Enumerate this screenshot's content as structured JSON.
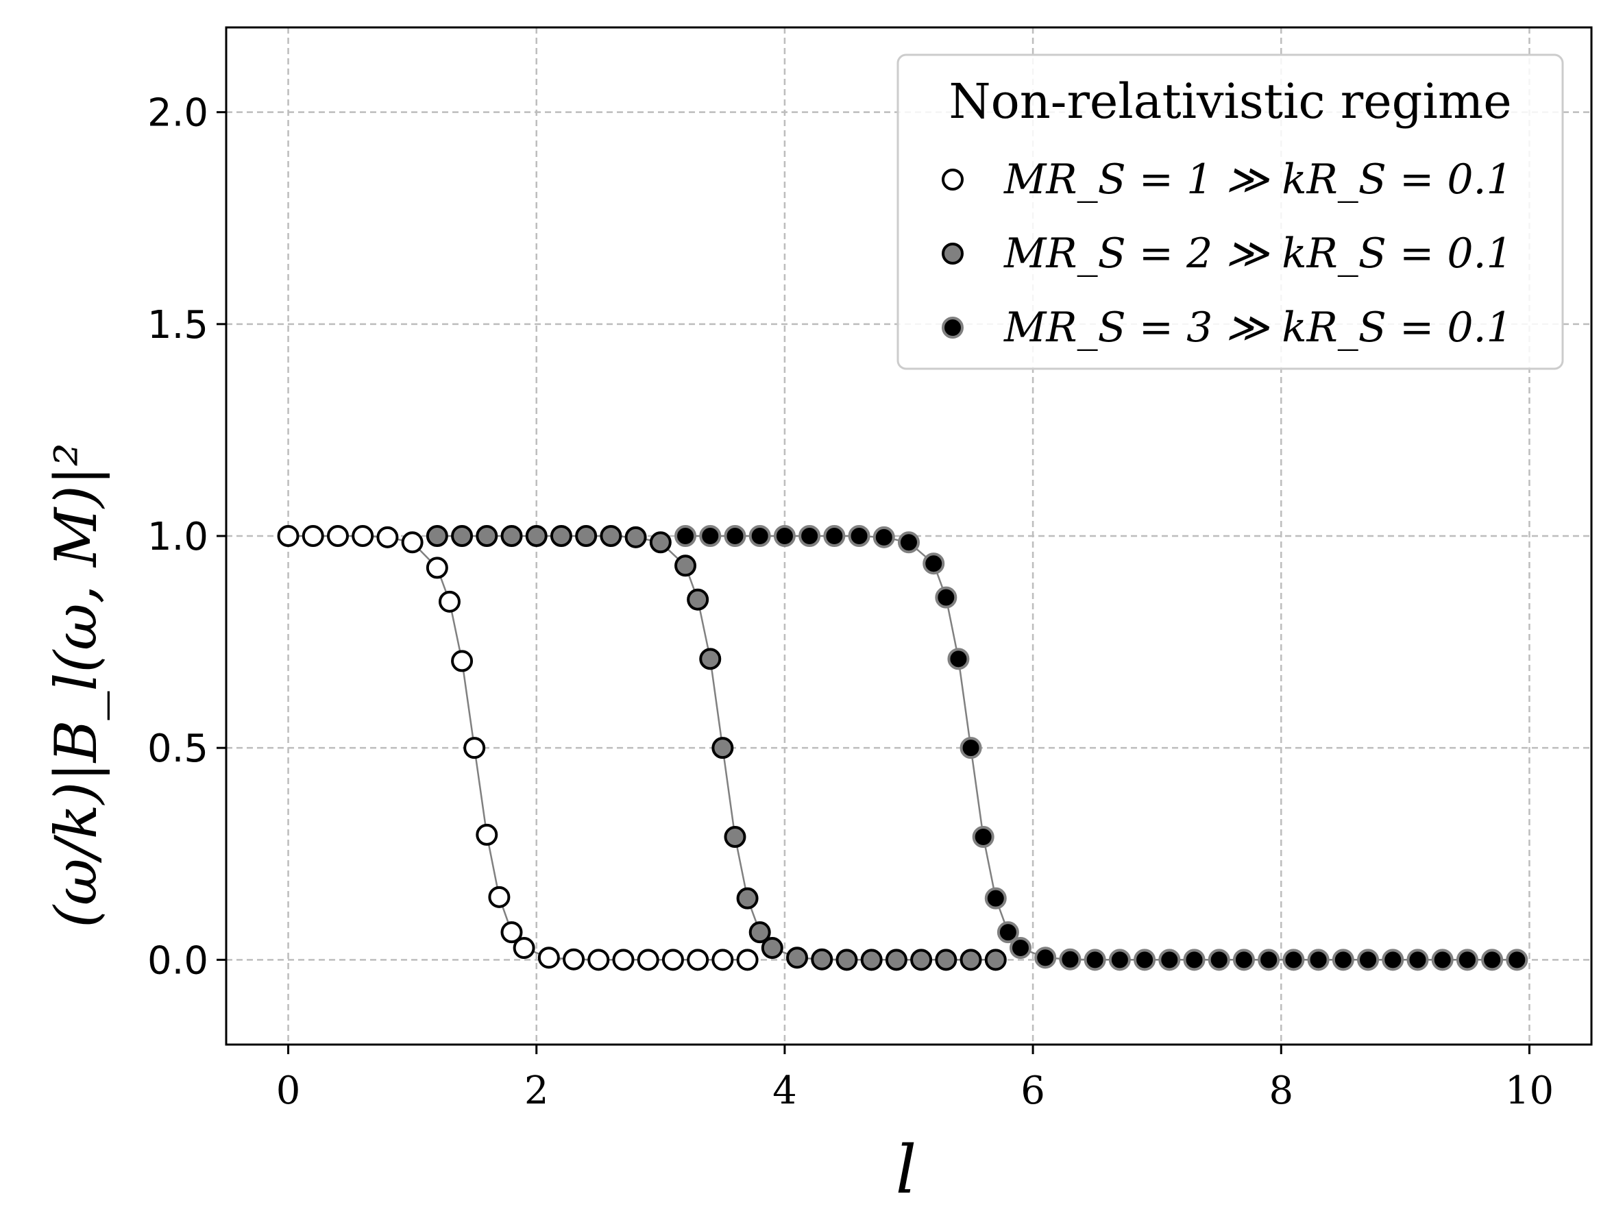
{
  "chart_data": {
    "type": "scatter",
    "xlabel": "l",
    "ylabel": "(ω/k)|B_l(ω, M)|²",
    "xlim": [
      -0.5,
      10.5
    ],
    "ylim": [
      -0.2,
      2.2
    ],
    "xticks": [
      "0",
      "2",
      "4",
      "6",
      "8",
      "10"
    ],
    "yticks": [
      "0.0",
      "0.5",
      "1.0",
      "1.5",
      "2.0"
    ],
    "grid": true,
    "legend": {
      "placement": "top-right",
      "title": "Non-relativistic regime",
      "entries": [
        "MR_S = 1 ≫ kR_S = 0.1",
        "MR_S = 2 ≫ kR_S = 0.1",
        "MR_S = 3 ≫ kR_S = 0.1"
      ]
    },
    "series": [
      {
        "marker_face": "#ffffff",
        "marker_edge": "#000000",
        "x": [
          0,
          0.2,
          0.4,
          0.6,
          0.8,
          1.0,
          1.2,
          1.3,
          1.4,
          1.5,
          1.6,
          1.7,
          1.8,
          1.9,
          2.1,
          2.3,
          2.5,
          2.7,
          2.9,
          3.1,
          3.3,
          3.5,
          3.7
        ],
        "y": [
          1.0,
          1.0,
          1.0,
          1.0,
          0.997,
          0.985,
          0.925,
          0.845,
          0.705,
          0.5,
          0.295,
          0.148,
          0.065,
          0.028,
          0.005,
          0.001,
          0,
          0,
          0,
          0,
          0,
          0,
          0
        ]
      },
      {
        "marker_face": "#808080",
        "marker_edge": "#000000",
        "x": [
          1.2,
          1.4,
          1.6,
          1.8,
          2.0,
          2.2,
          2.4,
          2.6,
          2.8,
          3.0,
          3.2,
          3.3,
          3.4,
          3.5,
          3.6,
          3.7,
          3.8,
          3.9,
          4.1,
          4.3,
          4.5,
          4.7,
          4.9,
          5.1,
          5.3,
          5.5,
          5.7
        ],
        "y": [
          1.0,
          1.0,
          1.0,
          1.0,
          1.0,
          1.0,
          1.0,
          1.0,
          0.997,
          0.985,
          0.93,
          0.85,
          0.71,
          0.5,
          0.29,
          0.145,
          0.065,
          0.028,
          0.005,
          0.001,
          0,
          0,
          0,
          0,
          0,
          0,
          0
        ]
      },
      {
        "marker_face": "#000000",
        "marker_edge": "#808080",
        "x": [
          3.2,
          3.4,
          3.6,
          3.8,
          4.0,
          4.2,
          4.4,
          4.6,
          4.8,
          5.0,
          5.2,
          5.3,
          5.4,
          5.5,
          5.6,
          5.7,
          5.8,
          5.9,
          6.1,
          6.3,
          6.5,
          6.7,
          6.9,
          7.1,
          7.3,
          7.5,
          7.7,
          7.9,
          8.1,
          8.3,
          8.5,
          8.7,
          8.9,
          9.1,
          9.3,
          9.5,
          9.7,
          9.9
        ],
        "y": [
          1.0,
          1.0,
          1.0,
          1.0,
          1.0,
          1.0,
          1.0,
          1.0,
          0.997,
          0.985,
          0.935,
          0.855,
          0.71,
          0.5,
          0.29,
          0.145,
          0.065,
          0.028,
          0.005,
          0.001,
          0,
          0,
          0,
          0,
          0,
          0,
          0,
          0,
          0,
          0,
          0,
          0,
          0,
          0,
          0,
          0,
          0,
          0
        ]
      }
    ]
  }
}
